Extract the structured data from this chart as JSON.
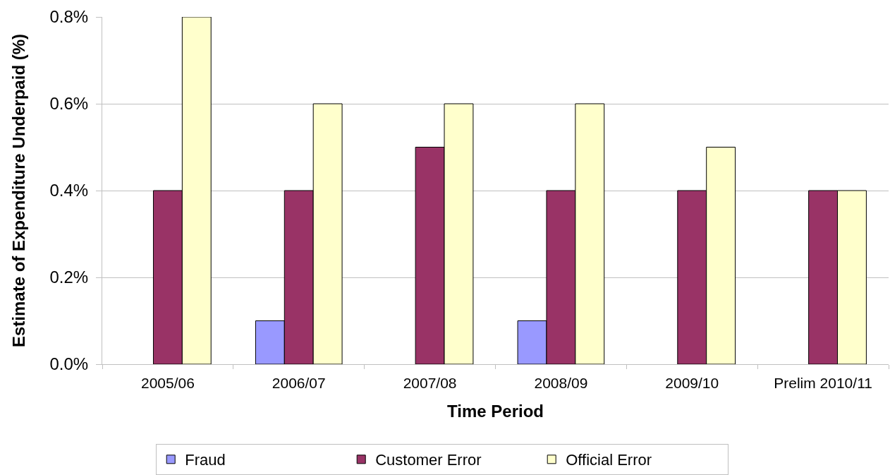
{
  "chart_data": {
    "type": "bar",
    "xlabel": "Time Period",
    "ylabel": "Estimate of Expenditure Underpaid (%)",
    "categories": [
      "2005/06",
      "2006/07",
      "2007/08",
      "2008/09",
      "2009/10",
      "Prelim 2010/11"
    ],
    "series": [
      {
        "name": "Fraud",
        "color": "#9999ff",
        "values": [
          null,
          0.1,
          null,
          0.1,
          null,
          null
        ]
      },
      {
        "name": "Customer Error",
        "color": "#993366",
        "values": [
          0.4,
          0.4,
          0.5,
          0.4,
          0.4,
          0.4
        ]
      },
      {
        "name": "Official Error",
        "color": "#ffffcc",
        "values": [
          0.8,
          0.6,
          0.6,
          0.6,
          0.5,
          0.4
        ]
      }
    ],
    "ylim": [
      0,
      0.8
    ],
    "yticks": [
      {
        "value": 0,
        "label": "0.0%"
      },
      {
        "value": 0.2,
        "label": "0.2%"
      },
      {
        "value": 0.4,
        "label": "0.4%"
      },
      {
        "value": 0.6,
        "label": "0.6%"
      },
      {
        "value": 0.8,
        "label": "0.8%"
      }
    ],
    "grid": "y",
    "legend": "bottom"
  }
}
